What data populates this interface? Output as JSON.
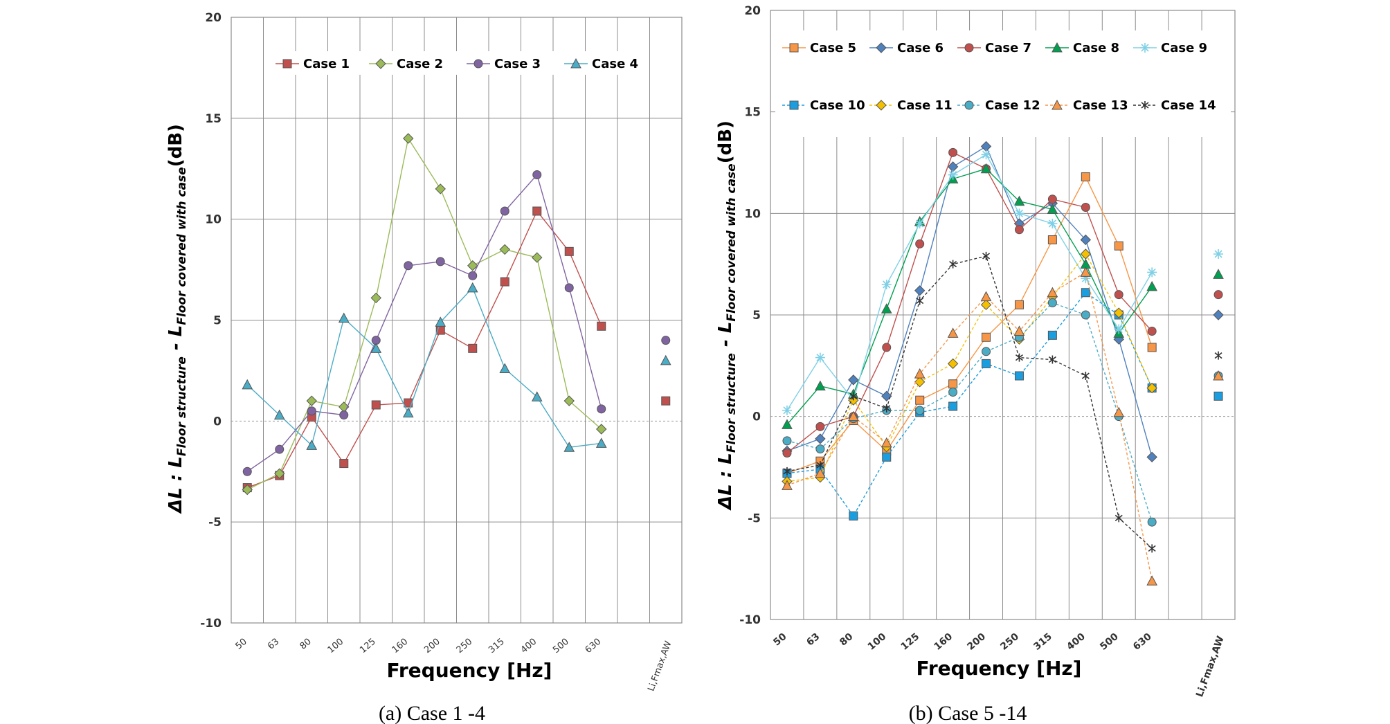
{
  "chart_data": [
    {
      "type": "line",
      "caption": "(a) Case 1 -4",
      "xlabel": "Frequency [Hz]",
      "ylabel_main": "ΔL : L",
      "ylabel_sub1": "Floor structure",
      "ylabel_mid": " - L",
      "ylabel_sub2": "Floor covered with case",
      "ylabel_unit": "(dB)",
      "ylim": [
        -10,
        20
      ],
      "yticks": [
        -10,
        -5,
        0,
        5,
        10,
        15,
        20
      ],
      "categories": [
        "50",
        "63",
        "80",
        "100",
        "125",
        "160",
        "200",
        "250",
        "315",
        "400",
        "500",
        "630"
      ],
      "extra_category": "Li,Fmax,AW",
      "series": [
        {
          "name": "Case 1",
          "color": "#c0504d",
          "marker": "square",
          "dash": false,
          "values": [
            -3.3,
            -2.7,
            0.2,
            -2.1,
            0.8,
            0.9,
            4.5,
            3.6,
            6.9,
            10.4,
            8.4,
            4.7
          ],
          "single": 1.0
        },
        {
          "name": "Case 2",
          "color": "#9bbb59",
          "marker": "diamond",
          "dash": false,
          "values": [
            -3.4,
            -2.6,
            1.0,
            0.7,
            6.1,
            14.0,
            11.5,
            7.7,
            8.5,
            8.1,
            1.0,
            -0.4
          ],
          "single": null
        },
        {
          "name": "Case 3",
          "color": "#8064a2",
          "marker": "circle",
          "dash": false,
          "values": [
            -2.5,
            -1.4,
            0.5,
            0.3,
            4.0,
            7.7,
            7.9,
            7.2,
            10.4,
            12.2,
            6.6,
            0.6
          ],
          "single": 4.0
        },
        {
          "name": "Case 4",
          "color": "#4bacc6",
          "marker": "triangle",
          "dash": false,
          "values": [
            1.8,
            0.3,
            -1.2,
            5.1,
            3.6,
            0.4,
            4.9,
            6.6,
            2.6,
            1.2,
            -1.3,
            -1.1
          ],
          "single": 3.0
        }
      ]
    },
    {
      "type": "line",
      "caption": "(b) Case 5 -14",
      "xlabel": "Frequency [Hz]",
      "ylabel_main": "ΔL : L",
      "ylabel_sub1": "Floor structure",
      "ylabel_mid": " - L",
      "ylabel_sub2": "Floor covered with case",
      "ylabel_unit": "(dB)",
      "ylim": [
        -10,
        20
      ],
      "yticks": [
        -10,
        -5,
        0,
        5,
        10,
        15,
        20
      ],
      "categories": [
        "50",
        "63",
        "80",
        "100",
        "125",
        "160",
        "200",
        "250",
        "315",
        "400",
        "500",
        "630"
      ],
      "extra_category": "Li,Fmax,AW",
      "series": [
        {
          "name": "Case 5",
          "color": "#f79646",
          "marker": "square",
          "dash": false,
          "values": [
            -2.8,
            -2.2,
            -0.2,
            -1.7,
            0.8,
            1.6,
            3.9,
            5.5,
            8.7,
            11.8,
            8.4,
            3.4
          ],
          "single": null
        },
        {
          "name": "Case 6",
          "color": "#4f81bd",
          "marker": "diamond",
          "dash": false,
          "values": [
            -1.7,
            -1.1,
            1.8,
            1.0,
            6.2,
            12.3,
            13.3,
            9.5,
            10.5,
            8.7,
            3.8,
            -2.0
          ],
          "single": 5.0
        },
        {
          "name": "Case 7",
          "color": "#c0504d",
          "marker": "circle",
          "dash": false,
          "values": [
            -1.8,
            -0.5,
            0.0,
            3.4,
            8.5,
            13.0,
            12.2,
            9.2,
            10.7,
            10.3,
            6.0,
            4.2
          ],
          "single": 6.0
        },
        {
          "name": "Case 8",
          "color": "#00a050",
          "marker": "triangle",
          "dash": false,
          "values": [
            -0.4,
            1.5,
            1.1,
            5.3,
            9.6,
            11.7,
            12.2,
            10.6,
            10.2,
            7.5,
            4.1,
            6.4
          ],
          "single": 7.0
        },
        {
          "name": "Case 9",
          "color": "#7fd0e6",
          "marker": "star",
          "dash": false,
          "values": [
            0.3,
            2.9,
            0.8,
            6.5,
            9.5,
            11.9,
            12.9,
            10.0,
            9.5,
            6.8,
            4.3,
            7.1
          ],
          "single": 8.0
        },
        {
          "name": "Case 10",
          "color": "#1a9ee0",
          "marker": "square",
          "dash": true,
          "values": [
            -2.8,
            -2.6,
            -4.9,
            -2.0,
            0.2,
            0.5,
            2.6,
            2.0,
            4.0,
            6.1,
            5.0,
            1.4
          ],
          "single": 1.0
        },
        {
          "name": "Case 11",
          "color": "#f5c000",
          "marker": "diamond",
          "dash": true,
          "values": [
            -3.2,
            -3.0,
            0.8,
            -1.5,
            1.7,
            2.6,
            5.5,
            3.8,
            5.9,
            8.0,
            5.1,
            1.4
          ],
          "single": null
        },
        {
          "name": "Case 12",
          "color": "#4bacc6",
          "marker": "circle",
          "dash": true,
          "values": [
            -1.2,
            -1.6,
            -0.1,
            0.3,
            0.3,
            1.2,
            3.2,
            3.9,
            5.6,
            5.0,
            0.0,
            -5.2
          ],
          "single": 2.0
        },
        {
          "name": "Case 13",
          "color": "#f79646",
          "marker": "triangle",
          "dash": true,
          "values": [
            -3.4,
            -2.8,
            0.0,
            -1.3,
            2.1,
            4.1,
            5.9,
            4.2,
            6.1,
            7.1,
            0.2,
            -8.1
          ],
          "single": 2.0
        },
        {
          "name": "Case 14",
          "color": "#333333",
          "marker": "asterisk",
          "dash": true,
          "values": [
            -2.7,
            -2.4,
            1.0,
            0.4,
            5.7,
            7.5,
            7.9,
            2.9,
            2.8,
            2.0,
            -5.0,
            -6.5
          ],
          "single": 3.0
        }
      ]
    }
  ]
}
